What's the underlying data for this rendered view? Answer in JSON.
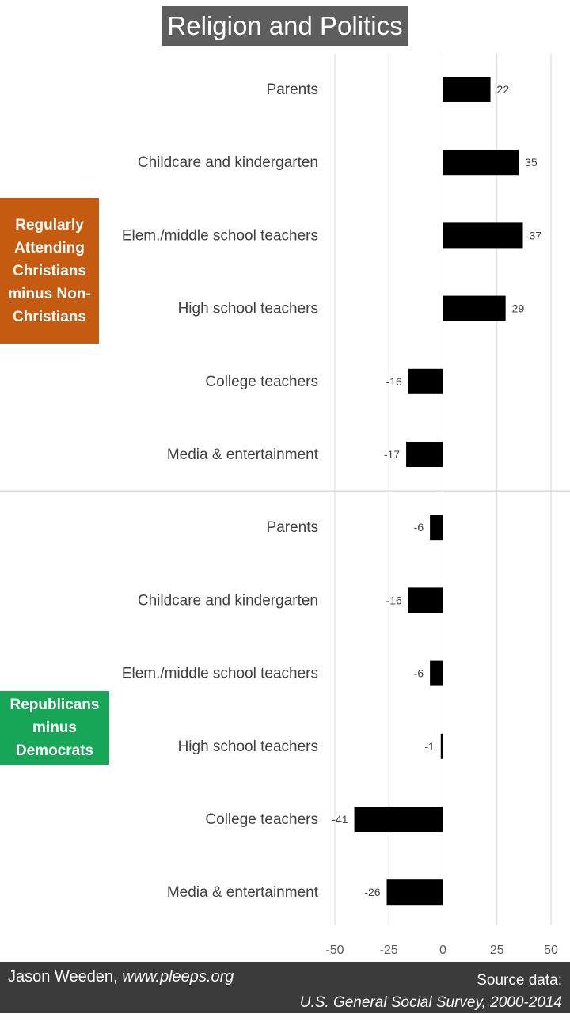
{
  "title": "Religion and Politics",
  "group_labels": {
    "religion": "Regularly Attending Christians minus Non-Christians",
    "party": "Republicans minus Democrats"
  },
  "colors": {
    "bar": "#000000",
    "title_bg": "#5e5e5e",
    "religion_box": "#c55a11",
    "party_box": "#17a657",
    "footer_bg": "#3b3b3b"
  },
  "footer": {
    "author": "Jason Weeden,",
    "site": "www.pleeps.org",
    "source_line1": "Source data:",
    "source_line2": "U.S. General Social Survey, 2000-2014"
  },
  "chart_data": {
    "type": "bar",
    "orientation": "horizontal",
    "title": "Religion and Politics",
    "xlim": [
      -50,
      50
    ],
    "xticks": [
      -50,
      -25,
      0,
      25,
      50
    ],
    "grid": true,
    "groups": [
      {
        "name": "Regularly Attending Christians minus Non-Christians",
        "categories": [
          "Parents",
          "Childcare and kindergarten",
          "Elem./middle school teachers",
          "High school teachers",
          "College teachers",
          "Media & entertainment"
        ],
        "values": [
          22,
          35,
          37,
          29,
          -16,
          -17
        ]
      },
      {
        "name": "Republicans minus Democrats",
        "categories": [
          "Parents",
          "Childcare and kindergarten",
          "Elem./middle school teachers",
          "High school teachers",
          "College teachers",
          "Media & entertainment"
        ],
        "values": [
          -6,
          -16,
          -6,
          -1,
          -41,
          -26
        ]
      }
    ]
  }
}
